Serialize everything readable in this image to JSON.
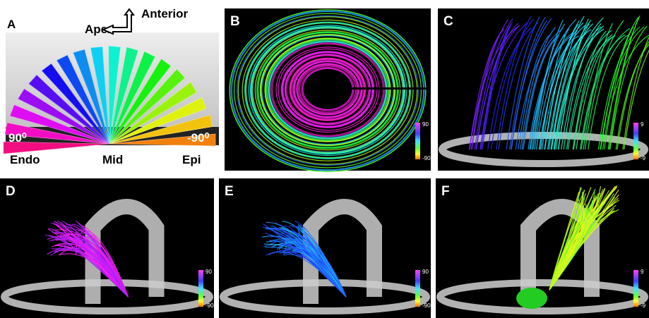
{
  "panel_a": {
    "label": "A",
    "apex": "Apex",
    "anterior": "Anterior",
    "left_angle": "90⁰",
    "right_angle": "-90⁰",
    "endo": "Endo",
    "mid": "Mid",
    "epi": "Epi"
  },
  "panels": [
    {
      "label": "B",
      "scale_max": "90",
      "scale_min": "-90"
    },
    {
      "label": "C",
      "scale_max": "9",
      "scale_min": "-9"
    },
    {
      "label": "D",
      "scale_max": "90",
      "scale_min": "-90"
    },
    {
      "label": "E",
      "scale_max": "90",
      "scale_min": "-90"
    },
    {
      "label": "F",
      "scale_max": "9",
      "scale_min": "-9"
    }
  ]
}
